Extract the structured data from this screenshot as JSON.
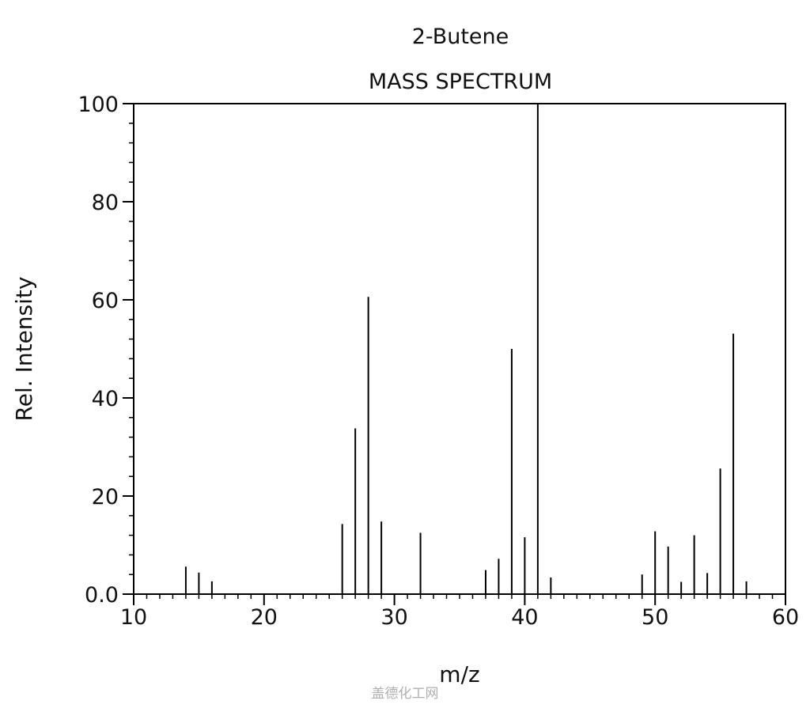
{
  "chart_data": {
    "type": "bar",
    "title": "2-Butene",
    "subtitle": "MASS SPECTRUM",
    "xlabel": "m/z",
    "ylabel": "Rel. Intensity",
    "xlim": [
      10,
      60
    ],
    "ylim": [
      0,
      100
    ],
    "x_ticks": [
      10,
      20,
      30,
      40,
      50,
      60
    ],
    "y_ticks": [
      0,
      20,
      40,
      60,
      80,
      100
    ],
    "y_tick_labels": [
      "0.0",
      "20",
      "40",
      "60",
      "80",
      "100"
    ],
    "grid": false,
    "peaks": {
      "x": [
        14,
        15,
        16,
        26,
        27,
        28,
        29,
        32,
        37,
        38,
        39,
        40,
        41,
        42,
        49,
        50,
        51,
        52,
        53,
        54,
        55,
        56,
        57
      ],
      "y": [
        5.6,
        4.4,
        2.6,
        14.3,
        33.8,
        60.6,
        14.8,
        12.5,
        4.9,
        7.2,
        50.0,
        11.6,
        100,
        3.4,
        4.0,
        12.8,
        9.7,
        2.5,
        12.0,
        4.3,
        25.6,
        53.1,
        2.6
      ]
    },
    "bar_color": "#000000"
  },
  "watermark": "盖德化工网"
}
